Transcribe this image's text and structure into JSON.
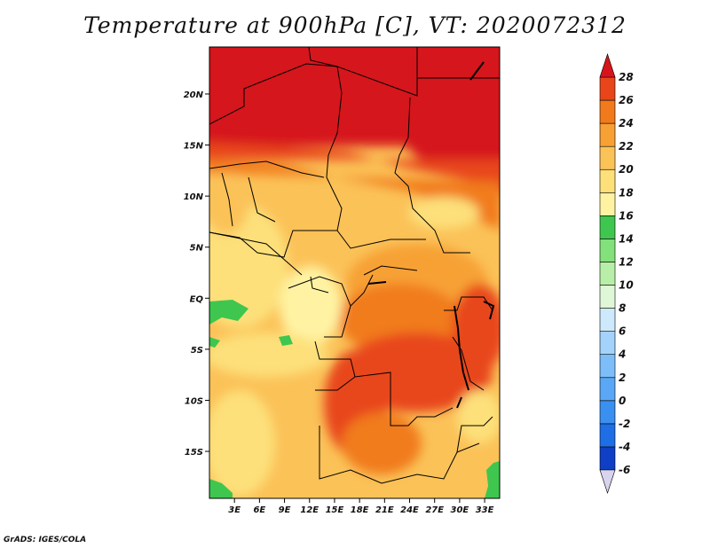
{
  "title": "Temperature at 900hPa [C], VT: 2020072312",
  "credit": "GrADS: IGES/COLA",
  "map": {
    "lat_range": [
      -19.6,
      24.6
    ],
    "lon_range": [
      0,
      34.8
    ],
    "lat_ticks": [
      {
        "lat": 20,
        "label": "20N"
      },
      {
        "lat": 15,
        "label": "15N"
      },
      {
        "lat": 10,
        "label": "10N"
      },
      {
        "lat": 5,
        "label": "5N"
      },
      {
        "lat": 0,
        "label": "EQ"
      },
      {
        "lat": -5,
        "label": "5S"
      },
      {
        "lat": -10,
        "label": "10S"
      },
      {
        "lat": -15,
        "label": "15S"
      }
    ],
    "lon_ticks": [
      {
        "lon": 3,
        "label": "3E"
      },
      {
        "lon": 6,
        "label": "6E"
      },
      {
        "lon": 9,
        "label": "9E"
      },
      {
        "lon": 12,
        "label": "12E"
      },
      {
        "lon": 15,
        "label": "15E"
      },
      {
        "lon": 18,
        "label": "18E"
      },
      {
        "lon": 21,
        "label": "21E"
      },
      {
        "lon": 24,
        "label": "24E"
      },
      {
        "lon": 27,
        "label": "27E"
      },
      {
        "lon": 30,
        "label": "30E"
      },
      {
        "lon": 33,
        "label": "33E"
      }
    ]
  },
  "colorbar": {
    "levels": [
      "-6",
      "-4",
      "-2",
      "0",
      "2",
      "4",
      "6",
      "8",
      "10",
      "12",
      "14",
      "16",
      "18",
      "20",
      "22",
      "24",
      "26",
      "28"
    ],
    "colors": [
      "#1a1a9e",
      "#0f3fc4",
      "#1e6ee6",
      "#3a90f0",
      "#5aa8f5",
      "#7ebef8",
      "#a4d2fb",
      "#cfe9fc",
      "#dff7d6",
      "#b8efa8",
      "#83e07a",
      "#3fc64f",
      "#fff3a3",
      "#fde07a",
      "#fbc258",
      "#f7a134",
      "#f17b1c",
      "#e8461a",
      "#d5151b"
    ],
    "under_color": "#d8d4ef",
    "over_color": "#d5151b"
  }
}
